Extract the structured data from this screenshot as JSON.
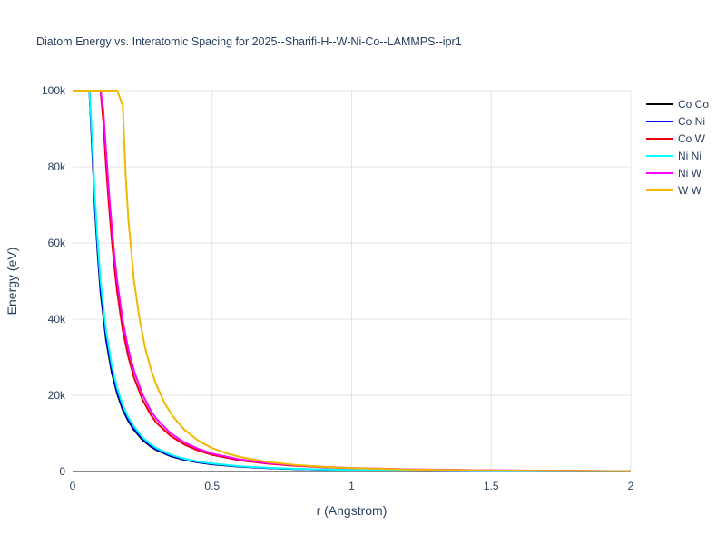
{
  "chart_data": {
    "type": "line",
    "title": "Diatom Energy vs. Interatomic Spacing for 2025--Sharifi-H--W-Ni-Co--LAMMPS--ipr1",
    "xlabel": "r (Angstrom)",
    "ylabel": "Energy (eV)",
    "xlim": [
      0,
      2
    ],
    "ylim": [
      0,
      100000
    ],
    "x_ticks": [
      0,
      0.5,
      1,
      1.5,
      2
    ],
    "x_tick_labels": [
      "0",
      "0.5",
      "1",
      "1.5",
      "2"
    ],
    "y_ticks": [
      0,
      20000,
      40000,
      60000,
      80000,
      100000
    ],
    "y_tick_labels": [
      "0",
      "20k",
      "40k",
      "60k",
      "80k",
      "100k"
    ],
    "grid": true,
    "legend_position": "top-right",
    "series": [
      {
        "name": "Co Co",
        "color": "#000000",
        "x": [
          0.06,
          0.07,
          0.08,
          0.09,
          0.1,
          0.12,
          0.14,
          0.16,
          0.18,
          0.2,
          0.22,
          0.25,
          0.28,
          0.3,
          0.35,
          0.4,
          0.45,
          0.5,
          0.6,
          0.7,
          0.8,
          0.9,
          1.0,
          1.2,
          1.5,
          2.0
        ],
        "y": [
          100000,
          85000,
          69000,
          57000,
          47000,
          34500,
          26000,
          20300,
          16200,
          13200,
          10900,
          8300,
          6550,
          5650,
          4050,
          3050,
          2370,
          1890,
          1260,
          890,
          650,
          490,
          380,
          240,
          120,
          40
        ]
      },
      {
        "name": "Co Ni",
        "color": "#0000ff",
        "x": [
          0.06,
          0.07,
          0.08,
          0.09,
          0.1,
          0.12,
          0.14,
          0.16,
          0.18,
          0.2,
          0.22,
          0.25,
          0.28,
          0.3,
          0.35,
          0.4,
          0.45,
          0.5,
          0.6,
          0.7,
          0.8,
          0.9,
          1.0,
          1.2,
          1.5,
          2.0
        ],
        "y": [
          100000,
          86000,
          70000,
          58000,
          48000,
          35300,
          26700,
          20800,
          16600,
          13500,
          11200,
          8550,
          6750,
          5800,
          4200,
          3150,
          2450,
          1950,
          1300,
          920,
          670,
          500,
          390,
          245,
          125,
          42
        ]
      },
      {
        "name": "Co W",
        "color": "#e8000b",
        "x": [
          0.1,
          0.11,
          0.12,
          0.13,
          0.14,
          0.15,
          0.16,
          0.18,
          0.2,
          0.22,
          0.25,
          0.28,
          0.3,
          0.35,
          0.4,
          0.45,
          0.5,
          0.6,
          0.7,
          0.8,
          0.9,
          1.0,
          1.2,
          1.5,
          2.0
        ],
        "y": [
          100000,
          92000,
          80000,
          70000,
          61000,
          53500,
          47000,
          37000,
          30000,
          24700,
          18900,
          14900,
          12800,
          9400,
          7100,
          5500,
          4350,
          2900,
          2050,
          1500,
          1120,
          860,
          540,
          280,
          90
        ]
      },
      {
        "name": "Ni Ni",
        "color": "#00ffff",
        "x": [
          0.06,
          0.07,
          0.08,
          0.09,
          0.1,
          0.12,
          0.14,
          0.16,
          0.18,
          0.2,
          0.22,
          0.25,
          0.28,
          0.3,
          0.35,
          0.4,
          0.45,
          0.5,
          0.6,
          0.7,
          0.8,
          0.9,
          1.0,
          1.2,
          1.5,
          2.0
        ],
        "y": [
          100000,
          88000,
          72000,
          60000,
          50000,
          37000,
          28000,
          21800,
          17400,
          14200,
          11800,
          9000,
          7100,
          6150,
          4450,
          3350,
          2600,
          2080,
          1390,
          980,
          720,
          540,
          420,
          265,
          135,
          45
        ]
      },
      {
        "name": "Ni W",
        "color": "#ff00ff",
        "x": [
          0.1,
          0.11,
          0.12,
          0.13,
          0.14,
          0.15,
          0.16,
          0.18,
          0.2,
          0.22,
          0.25,
          0.28,
          0.3,
          0.35,
          0.4,
          0.45,
          0.5,
          0.6,
          0.7,
          0.8,
          0.9,
          1.0,
          1.2,
          1.5,
          2.0
        ],
        "y": [
          100000,
          95000,
          84000,
          73500,
          64500,
          56500,
          49800,
          39500,
          32000,
          26400,
          20300,
          16000,
          13800,
          10100,
          7650,
          5950,
          4700,
          3150,
          2220,
          1620,
          1210,
          930,
          590,
          310,
          100
        ]
      },
      {
        "name": "W W",
        "color": "#f0b800",
        "x": [
          0.0,
          0.16,
          0.18,
          0.19,
          0.2,
          0.22,
          0.24,
          0.26,
          0.28,
          0.3,
          0.33,
          0.36,
          0.4,
          0.45,
          0.5,
          0.55,
          0.6,
          0.7,
          0.8,
          0.9,
          1.0,
          1.2,
          1.5,
          2.0
        ],
        "y": [
          100000,
          100000,
          96000,
          78000,
          66000,
          50000,
          40000,
          32500,
          27000,
          22700,
          17900,
          14400,
          11000,
          8100,
          6150,
          4800,
          3800,
          2480,
          1700,
          1210,
          890,
          530,
          270,
          90
        ]
      }
    ]
  }
}
